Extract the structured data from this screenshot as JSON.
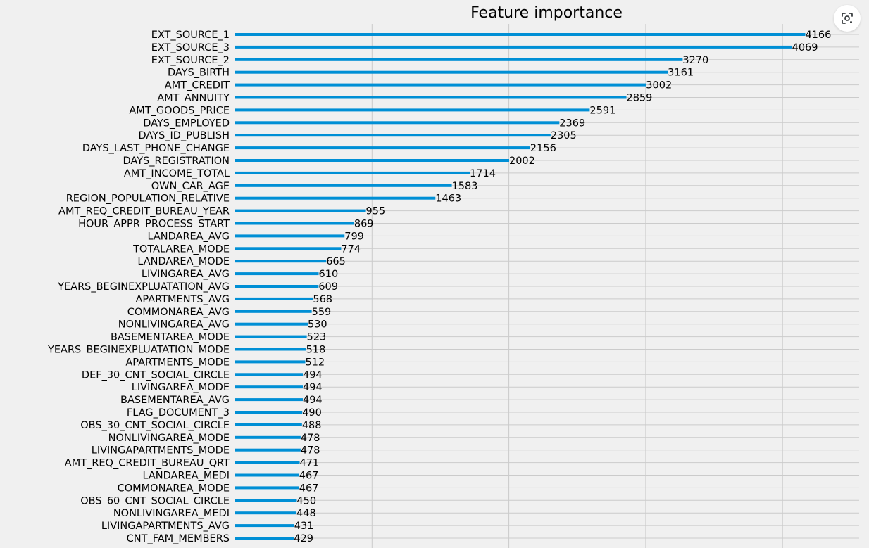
{
  "chart_data": {
    "type": "bar",
    "orientation": "horizontal",
    "title": "Feature importance",
    "xlabel": "",
    "ylabel": "",
    "xlim": [
      0,
      4560
    ],
    "grid": true,
    "color": "#008fd5",
    "categories": [
      "EXT_SOURCE_1",
      "EXT_SOURCE_3",
      "EXT_SOURCE_2",
      "DAYS_BIRTH",
      "AMT_CREDIT",
      "AMT_ANNUITY",
      "AMT_GOODS_PRICE",
      "DAYS_EMPLOYED",
      "DAYS_ID_PUBLISH",
      "DAYS_LAST_PHONE_CHANGE",
      "DAYS_REGISTRATION",
      "AMT_INCOME_TOTAL",
      "OWN_CAR_AGE",
      "REGION_POPULATION_RELATIVE",
      "AMT_REQ_CREDIT_BUREAU_YEAR",
      "HOUR_APPR_PROCESS_START",
      "LANDAREA_AVG",
      "TOTALAREA_MODE",
      "LANDAREA_MODE",
      "LIVINGAREA_AVG",
      "YEARS_BEGINEXPLUATATION_AVG",
      "APARTMENTS_AVG",
      "COMMONAREA_AVG",
      "NONLIVINGAREA_AVG",
      "BASEMENTAREA_MODE",
      "YEARS_BEGINEXPLUATATION_MODE",
      "APARTMENTS_MODE",
      "DEF_30_CNT_SOCIAL_CIRCLE",
      "LIVINGAREA_MODE",
      "BASEMENTAREA_AVG",
      "FLAG_DOCUMENT_3",
      "OBS_30_CNT_SOCIAL_CIRCLE",
      "NONLIVINGAREA_MODE",
      "LIVINGAPARTMENTS_MODE",
      "AMT_REQ_CREDIT_BUREAU_QRT",
      "LANDAREA_MEDI",
      "COMMONAREA_MODE",
      "OBS_60_CNT_SOCIAL_CIRCLE",
      "NONLIVINGAREA_MEDI",
      "LIVINGAPARTMENTS_AVG",
      "CNT_FAM_MEMBERS"
    ],
    "values": [
      4166,
      4069,
      3270,
      3161,
      3002,
      2859,
      2591,
      2369,
      2305,
      2156,
      2002,
      1714,
      1583,
      1463,
      955,
      869,
      799,
      774,
      665,
      610,
      609,
      568,
      559,
      530,
      523,
      518,
      512,
      494,
      494,
      494,
      490,
      488,
      478,
      478,
      471,
      467,
      467,
      450,
      448,
      431,
      429
    ]
  },
  "lens_button": {
    "icon": "lens-icon"
  }
}
